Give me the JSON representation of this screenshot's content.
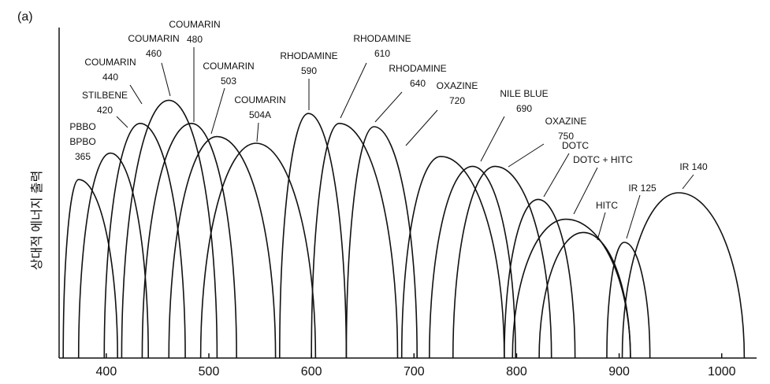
{
  "chart_data": {
    "type": "tuning",
    "panel": "(a)",
    "y_label": "상대적 에너지 출력",
    "xlim": [
      354,
      1034
    ],
    "ylim": [
      0,
      100
    ],
    "xticks": [
      400,
      500,
      600,
      700,
      800,
      900,
      1000
    ],
    "color": "#111111",
    "series": [
      {
        "label": [
          "PBBO",
          "BPBO",
          "365"
        ],
        "x": [
          358,
          373,
          411
        ],
        "values": [
          0,
          54,
          0
        ]
      },
      {
        "label": [
          "STILBENE",
          "420"
        ],
        "x": [
          373,
          404,
          441
        ],
        "values": [
          0,
          62,
          0
        ]
      },
      {
        "label": [
          "COUMARIN",
          "440"
        ],
        "x": [
          398,
          433,
          477
        ],
        "values": [
          0,
          71,
          0
        ]
      },
      {
        "label": [
          "COUMARIN",
          "460"
        ],
        "x": [
          415,
          461,
          508
        ],
        "values": [
          0,
          78,
          0
        ]
      },
      {
        "label": [
          "COUMARIN",
          "480"
        ],
        "x": [
          435,
          483,
          527
        ],
        "values": [
          0,
          71,
          0
        ]
      },
      {
        "label": [
          "COUMARIN",
          "503"
        ],
        "x": [
          461,
          508,
          565
        ],
        "values": [
          0,
          67,
          0
        ]
      },
      {
        "label": [
          "COUMARIN",
          "504A"
        ],
        "x": [
          492,
          546,
          604
        ],
        "values": [
          0,
          65,
          0
        ]
      },
      {
        "label": [
          "RHODAMINE",
          "590"
        ],
        "x": [
          569,
          597,
          634
        ],
        "values": [
          0,
          74,
          0
        ]
      },
      {
        "label": [
          "RHODAMINE",
          "610"
        ],
        "x": [
          600,
          627,
          684
        ],
        "values": [
          0,
          71,
          0
        ]
      },
      {
        "label": [
          "RHODAMINE",
          "640"
        ],
        "x": [
          634,
          661,
          703
        ],
        "values": [
          0,
          70,
          0
        ]
      },
      {
        "label": [
          "OXAZINE",
          "720"
        ],
        "x": [
          688,
          726,
          788
        ],
        "values": [
          0,
          61,
          0
        ]
      },
      {
        "label": [
          "NILE BLUE",
          "690"
        ],
        "x": [
          715,
          757,
          799
        ],
        "values": [
          0,
          58,
          0
        ]
      },
      {
        "label": [
          "OXAZINE",
          "750"
        ],
        "x": [
          738,
          779,
          834
        ],
        "values": [
          0,
          58,
          0
        ]
      },
      {
        "label": [
          "DOTC"
        ],
        "x": [
          788,
          821,
          857
        ],
        "values": [
          0,
          48,
          0
        ]
      },
      {
        "label": [
          "DOTC + HITC"
        ],
        "x": [
          796,
          848,
          911
        ],
        "values": [
          0,
          42,
          0
        ]
      },
      {
        "label": [
          "HITC"
        ],
        "x": [
          822,
          865,
          911
        ],
        "values": [
          0,
          38,
          0
        ]
      },
      {
        "label": [
          "IR 125"
        ],
        "x": [
          888,
          905,
          930
        ],
        "values": [
          0,
          35,
          0
        ]
      },
      {
        "label": [
          "IR 140"
        ],
        "x": [
          903,
          958,
          1022
        ],
        "values": [
          0,
          50,
          0
        ]
      }
    ]
  }
}
